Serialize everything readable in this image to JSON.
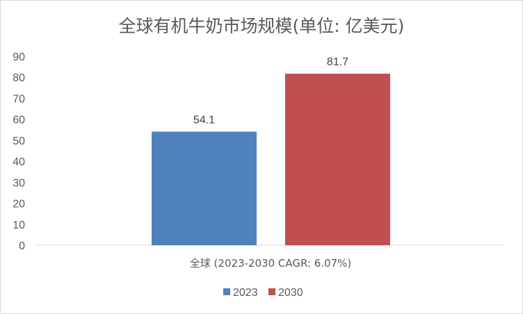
{
  "chart_data": {
    "type": "bar",
    "title": "全球有机牛奶市场规模(单位: 亿美元)",
    "categories": [
      "全球 (2023-2030 CAGR: 6.07%)"
    ],
    "series": [
      {
        "name": "2023",
        "values": [
          54.1
        ],
        "color": "#4f81bd"
      },
      {
        "name": "2030",
        "values": [
          81.7
        ],
        "color": "#c0504d"
      }
    ],
    "data_labels": [
      "54.1",
      "81.7"
    ],
    "yticks": [
      "0",
      "10",
      "20",
      "30",
      "40",
      "50",
      "60",
      "70",
      "80",
      "90"
    ],
    "ylim": [
      0,
      90
    ],
    "grid": false,
    "legend": "bottom",
    "xlabel": "",
    "ylabel": ""
  }
}
